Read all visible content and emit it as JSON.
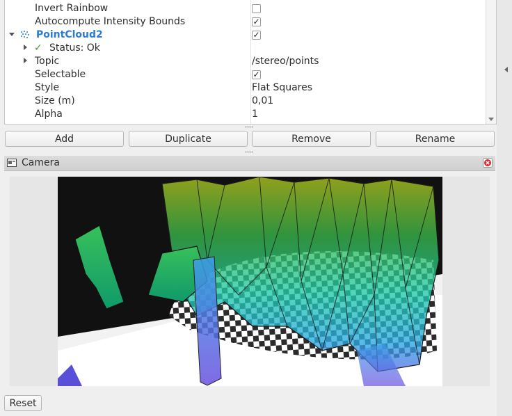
{
  "properties": {
    "invert_rainbow": {
      "label": "Invert Rainbow",
      "checked": false
    },
    "autocompute_bounds": {
      "label": "Autocompute Intensity Bounds",
      "checked": true
    },
    "pointcloud": {
      "label": "PointCloud2",
      "checked": true,
      "icon": "pointcloud-icon"
    },
    "status": {
      "label": "Status: Ok",
      "mark": "✓"
    },
    "topic": {
      "label": "Topic",
      "value": "/stereo/points"
    },
    "selectable": {
      "label": "Selectable",
      "checked": true
    },
    "style": {
      "label": "Style",
      "value": "Flat Squares"
    },
    "size": {
      "label": "Size (m)",
      "value": "0,01"
    },
    "alpha": {
      "label": "Alpha",
      "value": "1"
    }
  },
  "buttons": {
    "add": "Add",
    "duplicate": "Duplicate",
    "remove": "Remove",
    "rename": "Rename"
  },
  "camera": {
    "title": "Camera",
    "reset": "Reset"
  },
  "colors": {
    "accent": "#2a7bd1",
    "status_ok": "#3a9a2e",
    "close": "#d9262b"
  }
}
